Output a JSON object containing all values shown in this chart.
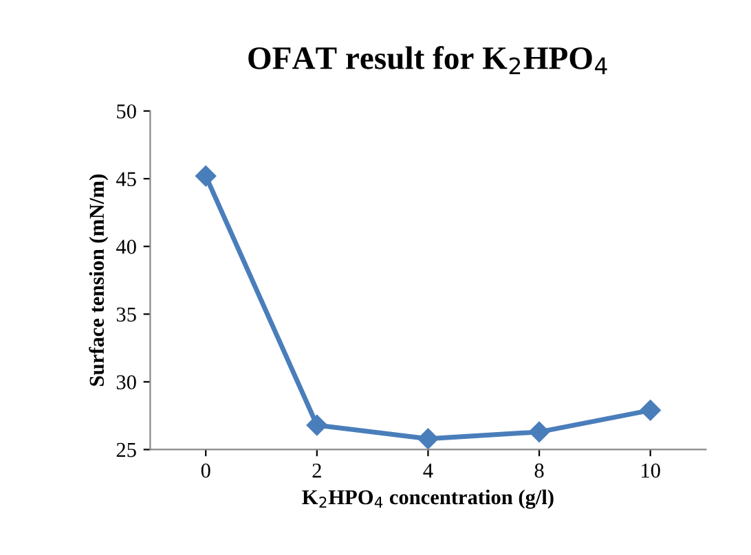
{
  "chart_data": {
    "type": "line",
    "title": "OFAT result for K$_{2}$HPO$_{4}$",
    "xlabel": "K$_{2}$HPO$_{4}$ concentration (g/l)",
    "ylabel": "Surface tension (mN/m)",
    "categories": [
      "0",
      "2",
      "4",
      "8",
      "10"
    ],
    "series": [
      {
        "color": "#4a7ebb",
        "values": [
          45.2,
          26.8,
          25.8,
          26.3,
          27.9
        ]
      }
    ],
    "ylim": [
      25,
      50
    ],
    "yticks": [
      25,
      30,
      35,
      40,
      45,
      50
    ],
    "marker": "diamond",
    "line_style": "solid",
    "grid": false,
    "legend": false
  }
}
